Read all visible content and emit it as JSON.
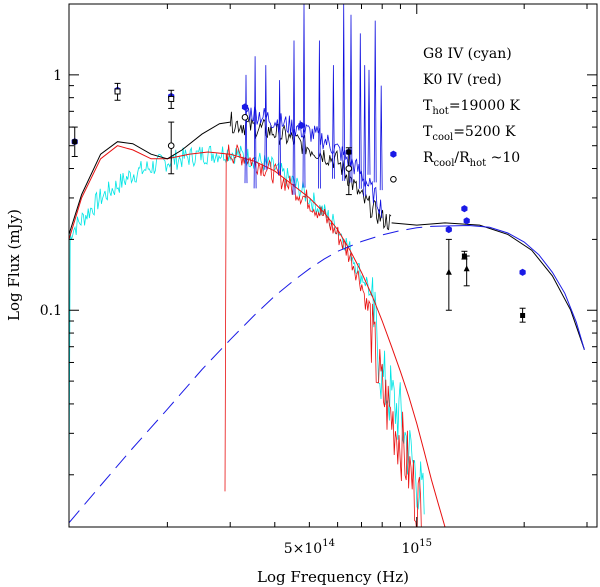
{
  "chart_data": {
    "type": "line",
    "title": "",
    "xlabel": "Log Frequency (Hz)",
    "ylabel": "Log Flux  (mJy)",
    "x_scale": "log",
    "y_scale": "log",
    "xlim": [
      106000000000000.0,
      3200000000000000.0
    ],
    "ylim": [
      0.012,
      2.0
    ],
    "x_tick_labels": [
      {
        "value": 500000000000000.0,
        "mantissa": "5×10",
        "exp": "14"
      },
      {
        "value": 1000000000000000.0,
        "mantissa": "10",
        "exp": "15"
      }
    ],
    "y_tick_labels": [
      {
        "value": 1,
        "label": "1"
      },
      {
        "value": 0.1,
        "label": "0.1"
      }
    ],
    "annotations": [
      {
        "segments": [
          {
            "t": "G8 IV (cyan)"
          }
        ]
      },
      {
        "segments": [
          {
            "t": "K0 IV (red)"
          }
        ]
      },
      {
        "segments": [
          {
            "t": "T"
          },
          {
            "t": "hot",
            "sub": true
          },
          {
            "t": "=19000 K"
          }
        ]
      },
      {
        "segments": [
          {
            "t": "T"
          },
          {
            "t": "cool",
            "sub": true
          },
          {
            "t": "=5200 K"
          }
        ]
      },
      {
        "segments": [
          {
            "t": "R"
          },
          {
            "t": "cool",
            "sub": true
          },
          {
            "t": "/R"
          },
          {
            "t": "hot",
            "sub": true
          },
          {
            "t": " ~10"
          }
        ]
      }
    ],
    "series": [
      {
        "color": "#00e5e5",
        "style": "noisy",
        "points": [
          [
            106000000000000.0,
            0.21
          ],
          [
            130000000000000.0,
            0.3
          ],
          [
            160000000000000.0,
            0.38
          ],
          [
            200000000000000.0,
            0.43
          ],
          [
            250000000000000.0,
            0.46
          ],
          [
            300000000000000.0,
            0.47
          ],
          [
            350000000000000.0,
            0.44
          ],
          [
            400000000000000.0,
            0.4
          ],
          [
            450000000000000.0,
            0.35
          ],
          [
            500000000000000.0,
            0.3
          ],
          [
            550000000000000.0,
            0.26
          ],
          [
            600000000000000.0,
            0.225
          ],
          [
            650000000000000.0,
            0.18
          ],
          [
            700000000000000.0,
            0.14
          ],
          [
            730000000000000.0,
            0.13
          ],
          [
            770000000000000.0,
            0.08
          ],
          [
            800000000000000.0,
            0.05
          ],
          [
            850000000000000.0,
            0.042
          ],
          [
            900000000000000.0,
            0.035
          ],
          [
            950000000000000.0,
            0.025
          ],
          [
            1000000000000000.0,
            0.02
          ],
          [
            1050000000000000.0,
            0.014
          ]
        ]
      },
      {
        "color": "#e81010",
        "style": "noisy",
        "points": [
          [
            290000000000000.0,
            0.47
          ],
          [
            330000000000000.0,
            0.45
          ],
          [
            380000000000000.0,
            0.4
          ],
          [
            430000000000000.0,
            0.35
          ],
          [
            500000000000000.0,
            0.29
          ],
          [
            550000000000000.0,
            0.25
          ],
          [
            600000000000000.0,
            0.21
          ],
          [
            650000000000000.0,
            0.17
          ],
          [
            700000000000000.0,
            0.13
          ],
          [
            730000000000000.0,
            0.1
          ],
          [
            770000000000000.0,
            0.06
          ],
          [
            800000000000000.0,
            0.045
          ],
          [
            850000000000000.0,
            0.035
          ],
          [
            900000000000000.0,
            0.028
          ],
          [
            950000000000000.0,
            0.021
          ],
          [
            1000000000000000.0,
            0.016
          ],
          [
            1050000000000000.0,
            0.013
          ]
        ]
      },
      {
        "color": "#e81010",
        "style": "smooth",
        "points": [
          [
            106000000000000.0,
            0.2
          ],
          [
            115000000000000.0,
            0.3
          ],
          [
            130000000000000.0,
            0.44
          ],
          [
            145000000000000.0,
            0.5
          ],
          [
            160000000000000.0,
            0.48
          ],
          [
            180000000000000.0,
            0.44
          ],
          [
            200000000000000.0,
            0.44
          ],
          [
            230000000000000.0,
            0.46
          ],
          [
            260000000000000.0,
            0.47
          ],
          [
            300000000000000.0,
            0.46
          ],
          [
            350000000000000.0,
            0.43
          ],
          [
            400000000000000.0,
            0.39
          ],
          [
            450000000000000.0,
            0.34
          ],
          [
            500000000000000.0,
            0.3
          ],
          [
            550000000000000.0,
            0.26
          ],
          [
            600000000000000.0,
            0.22
          ],
          [
            650000000000000.0,
            0.18
          ],
          [
            700000000000000.0,
            0.145
          ],
          [
            750000000000000.0,
            0.115
          ],
          [
            800000000000000.0,
            0.09
          ],
          [
            850000000000000.0,
            0.07
          ],
          [
            900000000000000.0,
            0.055
          ],
          [
            950000000000000.0,
            0.043
          ],
          [
            1000000000000000.0,
            0.033
          ],
          [
            1050000000000000.0,
            0.025
          ],
          [
            1100000000000000.0,
            0.019
          ],
          [
            1150000000000000.0,
            0.015
          ],
          [
            1200000000000000.0,
            0.012
          ]
        ]
      },
      {
        "color": "#000000",
        "style": "smooth",
        "points": [
          [
            106000000000000.0,
            0.21
          ],
          [
            115000000000000.0,
            0.31
          ],
          [
            130000000000000.0,
            0.46
          ],
          [
            145000000000000.0,
            0.52
          ],
          [
            160000000000000.0,
            0.51
          ],
          [
            180000000000000.0,
            0.46
          ],
          [
            200000000000000.0,
            0.44
          ],
          [
            220000000000000.0,
            0.48
          ],
          [
            250000000000000.0,
            0.56
          ],
          [
            280000000000000.0,
            0.62
          ],
          [
            300000000000000.0,
            0.63
          ]
        ]
      },
      {
        "color": "#000000",
        "style": "noisy",
        "points": [
          [
            300000000000000.0,
            0.63
          ],
          [
            350000000000000.0,
            0.6
          ],
          [
            400000000000000.0,
            0.57
          ],
          [
            450000000000000.0,
            0.53
          ],
          [
            500000000000000.0,
            0.49
          ],
          [
            550000000000000.0,
            0.46
          ],
          [
            600000000000000.0,
            0.43
          ],
          [
            650000000000000.0,
            0.36
          ],
          [
            700000000000000.0,
            0.3
          ],
          [
            750000000000000.0,
            0.27
          ],
          [
            800000000000000.0,
            0.245
          ],
          [
            850000000000000.0,
            0.235
          ]
        ]
      },
      {
        "color": "#000000",
        "style": "smooth",
        "points": [
          [
            850000000000000.0,
            0.235
          ],
          [
            1000000000000000.0,
            0.23
          ],
          [
            1200000000000000.0,
            0.235
          ],
          [
            1500000000000000.0,
            0.23
          ],
          [
            1800000000000000.0,
            0.21
          ],
          [
            2100000000000000.0,
            0.18
          ],
          [
            2400000000000000.0,
            0.14
          ],
          [
            2700000000000000.0,
            0.1
          ],
          [
            2950000000000000.0,
            0.068
          ]
        ]
      },
      {
        "color": "#1a1ae6",
        "style": "dashed",
        "points": [
          [
            106000000000000.0,
            0.0125
          ],
          [
            130000000000000.0,
            0.018
          ],
          [
            160000000000000.0,
            0.026
          ],
          [
            200000000000000.0,
            0.038
          ],
          [
            250000000000000.0,
            0.056
          ],
          [
            300000000000000.0,
            0.075
          ],
          [
            350000000000000.0,
            0.095
          ],
          [
            400000000000000.0,
            0.115
          ],
          [
            450000000000000.0,
            0.133
          ],
          [
            500000000000000.0,
            0.15
          ],
          [
            550000000000000.0,
            0.165
          ],
          [
            600000000000000.0,
            0.178
          ],
          [
            700000000000000.0,
            0.196
          ],
          [
            800000000000000.0,
            0.209
          ],
          [
            900000000000000.0,
            0.218
          ],
          [
            1000000000000000.0,
            0.224
          ],
          [
            1100000000000000.0,
            0.227
          ]
        ]
      },
      {
        "color": "#1a1ae6",
        "style": "smooth",
        "points": [
          [
            1100000000000000.0,
            0.227
          ],
          [
            1200000000000000.0,
            0.228
          ],
          [
            1400000000000000.0,
            0.229
          ],
          [
            1600000000000000.0,
            0.225
          ],
          [
            1800000000000000.0,
            0.213
          ],
          [
            2000000000000000.0,
            0.195
          ],
          [
            2200000000000000.0,
            0.172
          ],
          [
            2400000000000000.0,
            0.145
          ],
          [
            2600000000000000.0,
            0.118
          ],
          [
            2800000000000000.0,
            0.089
          ],
          [
            2950000000000000.0,
            0.068
          ]
        ]
      },
      {
        "color": "#1010e0",
        "style": "noisy",
        "points": [
          [
            330000000000000.0,
            0.7
          ],
          [
            360000000000000.0,
            0.68
          ],
          [
            400000000000000.0,
            0.64
          ],
          [
            450000000000000.0,
            0.6
          ],
          [
            500000000000000.0,
            0.57
          ],
          [
            550000000000000.0,
            0.53
          ],
          [
            600000000000000.0,
            0.48
          ],
          [
            650000000000000.0,
            0.43
          ],
          [
            700000000000000.0,
            0.38
          ],
          [
            750000000000000.0,
            0.32
          ],
          [
            800000000000000.0,
            0.27
          ]
        ]
      },
      {
        "color": "#1010e0",
        "style": "spikes",
        "points": [
          [
            330000000000000.0,
            1.0
          ],
          [
            350000000000000.0,
            1.2
          ],
          [
            375000000000000.0,
            1.1
          ],
          [
            410000000000000.0,
            0.95
          ],
          [
            450000000000000.0,
            1.4
          ],
          [
            480000000000000.0,
            2.0
          ],
          [
            530000000000000.0,
            1.4
          ],
          [
            580000000000000.0,
            1.1
          ],
          [
            620000000000000.0,
            2.0
          ],
          [
            650000000000000.0,
            1.8
          ],
          [
            690000000000000.0,
            1.5
          ],
          [
            710000000000000.0,
            1.1
          ],
          [
            730000000000000.0,
            1.05
          ],
          [
            760000000000000.0,
            1.7
          ],
          [
            790000000000000.0,
            0.9
          ]
        ]
      }
    ],
    "points": [
      {
        "x": 110000000000000.0,
        "y": 0.52,
        "marker": "blue-hexagon"
      },
      {
        "x": 110000000000000.0,
        "y": 0.52,
        "marker": "square",
        "err": [
          0.45,
          0.6
        ]
      },
      {
        "x": 145000000000000.0,
        "y": 0.86,
        "marker": "blue-hexagon"
      },
      {
        "x": 145000000000000.0,
        "y": 0.85,
        "marker": "open-square",
        "err": [
          0.78,
          0.92
        ]
      },
      {
        "x": 205000000000000.0,
        "y": 0.81,
        "marker": "blue-hexagon"
      },
      {
        "x": 205000000000000.0,
        "y": 0.79,
        "marker": "open-square",
        "err": [
          0.72,
          0.86
        ]
      },
      {
        "x": 205000000000000.0,
        "y": 0.5,
        "marker": "open-circle",
        "err": [
          0.38,
          0.63
        ]
      },
      {
        "x": 330000000000000.0,
        "y": 0.73,
        "marker": "blue-hexagon"
      },
      {
        "x": 330000000000000.0,
        "y": 0.66,
        "marker": "open-circle"
      },
      {
        "x": 475000000000000.0,
        "y": 0.61,
        "marker": "blue-hexagon"
      },
      {
        "x": 645000000000000.0,
        "y": 0.47,
        "marker": "blue-hexagon"
      },
      {
        "x": 645000000000000.0,
        "y": 0.47,
        "marker": "square"
      },
      {
        "x": 645000000000000.0,
        "y": 0.4,
        "marker": "open-circle",
        "err": [
          0.31,
          0.49
        ]
      },
      {
        "x": 860000000000000.0,
        "y": 0.46,
        "marker": "blue-hexagon"
      },
      {
        "x": 860000000000000.0,
        "y": 0.36,
        "marker": "open-circle"
      },
      {
        "x": 1230000000000000.0,
        "y": 0.22,
        "marker": "blue-hexagon"
      },
      {
        "x": 1230000000000000.0,
        "y": 0.145,
        "marker": "triangle",
        "err": [
          0.1,
          0.2
        ]
      },
      {
        "x": 1360000000000000.0,
        "y": 0.27,
        "marker": "blue-hexagon"
      },
      {
        "x": 1380000000000000.0,
        "y": 0.24,
        "marker": "blue-hexagon"
      },
      {
        "x": 1360000000000000.0,
        "y": 0.17,
        "marker": "square",
        "err": [
          0.165,
          0.178
        ]
      },
      {
        "x": 1380000000000000.0,
        "y": 0.15,
        "marker": "triangle",
        "err": [
          0.127,
          0.17
        ]
      },
      {
        "x": 1980000000000000.0,
        "y": 0.145,
        "marker": "blue-hexagon"
      },
      {
        "x": 1980000000000000.0,
        "y": 0.095,
        "marker": "square",
        "err": [
          0.089,
          0.102
        ]
      }
    ]
  }
}
